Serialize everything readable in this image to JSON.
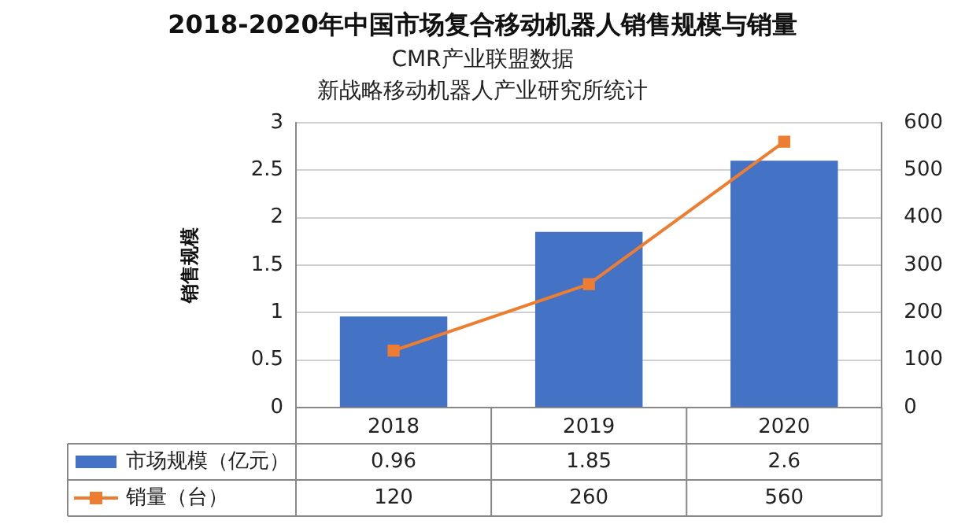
{
  "chart_data": {
    "type": "bar",
    "title": "2018-2020年中国市场复合移动机器人销售规模与销量",
    "subtitle": "CMR产业联盟数据",
    "annotations": [
      "新战略移动机器人产业研究所统计"
    ],
    "ylabel": "销售规模",
    "categories": [
      "2018",
      "2019",
      "2020"
    ],
    "series": [
      {
        "name": "市场规模（亿元）",
        "color": "#4472c4",
        "values": [
          0.96,
          1.85,
          2.6
        ]
      },
      {
        "name": "销量（台）",
        "type": "line",
        "axis": "y2",
        "color": "#ed7d31",
        "values": [
          120,
          260,
          560
        ]
      }
    ],
    "ylim": [
      0,
      3
    ],
    "yticks": [
      0,
      0.5,
      1,
      1.5,
      2,
      2.5,
      3
    ],
    "y2lim": [
      0,
      600
    ],
    "y2ticks": [
      0,
      100,
      200,
      300,
      400,
      500,
      600
    ],
    "grid": "y",
    "legend": "bottom",
    "data_labels": true,
    "marker": "square",
    "line_style": "solid"
  }
}
